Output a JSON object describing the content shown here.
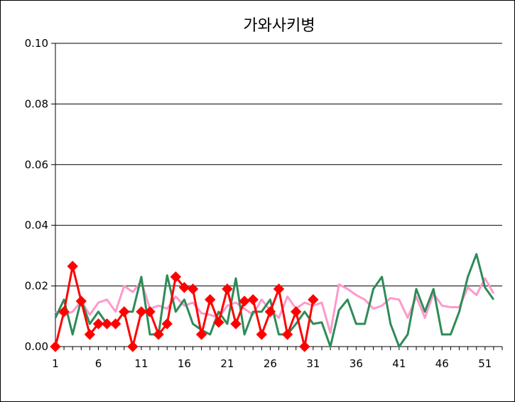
{
  "chart_data": {
    "type": "line",
    "title": "가와사키병",
    "xlabel": "",
    "ylabel": "",
    "ylim": [
      0,
      0.1
    ],
    "xlim": [
      1,
      53
    ],
    "y_ticks": [
      "0.00",
      "0.02",
      "0.04",
      "0.06",
      "0.08",
      "0.10"
    ],
    "x_ticks": [
      "1",
      "6",
      "11",
      "16",
      "21",
      "26",
      "31",
      "36",
      "41",
      "46",
      "51"
    ],
    "grid": "horizontal major",
    "legend": "none",
    "series": [
      {
        "color": "#ff99cc",
        "markers": false,
        "x": [
          1,
          2,
          3,
          4,
          5,
          6,
          7,
          8,
          9,
          10,
          11,
          12,
          13,
          14,
          15,
          16,
          17,
          18,
          19,
          20,
          21,
          22,
          23,
          24,
          25,
          26,
          27,
          28,
          29,
          30,
          31,
          32,
          33,
          34,
          35,
          36,
          37,
          38,
          39,
          40,
          41,
          42,
          43,
          44,
          45,
          46,
          47,
          48,
          49,
          50,
          51,
          52
        ],
        "values": [
          0.0115,
          0.0105,
          0.0115,
          0.015,
          0.0105,
          0.0145,
          0.0155,
          0.0115,
          0.02,
          0.018,
          0.0215,
          0.0125,
          0.0135,
          0.0125,
          0.0165,
          0.0135,
          0.0145,
          0.011,
          0.0105,
          0.0095,
          0.0135,
          0.0145,
          0.0125,
          0.0105,
          0.0155,
          0.012,
          0.0095,
          0.0165,
          0.0125,
          0.0145,
          0.0135,
          0.0145,
          0.0045,
          0.0205,
          0.019,
          0.017,
          0.0155,
          0.0125,
          0.0135,
          0.016,
          0.0155,
          0.0095,
          0.0165,
          0.0095,
          0.0175,
          0.0135,
          0.013,
          0.013,
          0.0195,
          0.017,
          0.0225,
          0.0175
        ]
      },
      {
        "color": "#2e8b57",
        "markers": false,
        "x": [
          1,
          2,
          3,
          4,
          5,
          6,
          7,
          8,
          9,
          10,
          11,
          12,
          13,
          14,
          15,
          16,
          17,
          18,
          19,
          20,
          21,
          22,
          23,
          24,
          25,
          26,
          27,
          28,
          29,
          30,
          31,
          32,
          33,
          34,
          35,
          36,
          37,
          38,
          39,
          40,
          41,
          42,
          43,
          44,
          45,
          46,
          47,
          48,
          49,
          50,
          51,
          52
        ],
        "values": [
          0.0095,
          0.0155,
          0.004,
          0.0155,
          0.0075,
          0.0115,
          0.0075,
          0.0075,
          0.0115,
          0.0115,
          0.023,
          0.004,
          0.004,
          0.0235,
          0.0115,
          0.0155,
          0.0075,
          0.0055,
          0.004,
          0.0115,
          0.0075,
          0.0225,
          0.004,
          0.0115,
          0.0115,
          0.0155,
          0.004,
          0.004,
          0.0075,
          0.0115,
          0.0075,
          0.008,
          0.0,
          0.012,
          0.0155,
          0.0075,
          0.0075,
          0.019,
          0.023,
          0.0075,
          0.0,
          0.004,
          0.019,
          0.0115,
          0.019,
          0.004,
          0.004,
          0.0115,
          0.023,
          0.0305,
          0.0195,
          0.0155
        ]
      },
      {
        "color": "#ff0000",
        "markers": true,
        "x": [
          1,
          2,
          3,
          4,
          5,
          6,
          7,
          8,
          9,
          10,
          11,
          12,
          13,
          14,
          15,
          16,
          17,
          18,
          19,
          20,
          21,
          22,
          23,
          24,
          25,
          26,
          27,
          28,
          29,
          30,
          31
        ],
        "values": [
          0.0,
          0.0115,
          0.0265,
          0.015,
          0.004,
          0.0075,
          0.0075,
          0.0075,
          0.0115,
          0.0,
          0.0115,
          0.0115,
          0.004,
          0.0075,
          0.023,
          0.0195,
          0.019,
          0.004,
          0.0155,
          0.008,
          0.019,
          0.0075,
          0.015,
          0.0155,
          0.004,
          0.0115,
          0.019,
          0.004,
          0.0115,
          0.0,
          0.0155
        ]
      }
    ]
  }
}
